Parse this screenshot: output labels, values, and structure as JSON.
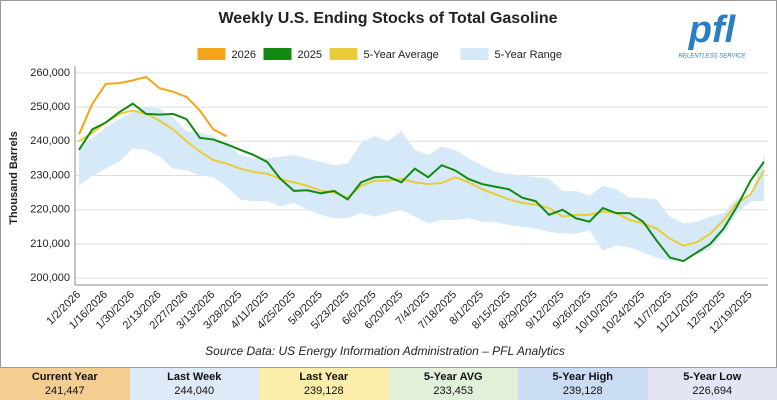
{
  "chart_data": {
    "type": "line",
    "title": "Weekly U.S. Ending Stocks of Total Gasoline",
    "y_label": "Thousand Barrels",
    "source": "Source Data: US Energy Information Administration – PFL Analytics",
    "categories": [
      "1/2/2026",
      null,
      "1/16/2026",
      null,
      "1/30/2026",
      null,
      "2/13/2026",
      null,
      "2/27/2026",
      null,
      "3/13/2026",
      null,
      "3/28/2025",
      null,
      "4/11/2025",
      null,
      "4/25/2025",
      null,
      "5/9/2025",
      null,
      "5/23/2025",
      null,
      "6/6/2025",
      null,
      "6/20/2025",
      null,
      "7/4/2025",
      null,
      "7/18/2025",
      null,
      "8/1/2025",
      null,
      "8/15/2025",
      null,
      "8/29/2025",
      null,
      "9/12/2025",
      null,
      "9/26/2025",
      null,
      "10/10/2025",
      null,
      "10/24/2025",
      null,
      "11/7/2025",
      null,
      "11/21/2025",
      null,
      "12/5/2025",
      null,
      "12/19/2025",
      null
    ],
    "range": {
      "name": "5-Year Range",
      "color": "#d6e9f8",
      "high": [
        238500,
        241000,
        244000,
        246500,
        248500,
        250000,
        249500,
        247000,
        243000,
        242500,
        241500,
        239128,
        236000,
        235000,
        235000,
        235500,
        236000,
        235000,
        234000,
        233000,
        233500,
        239500,
        241500,
        240000,
        243000,
        237500,
        236000,
        238500,
        237500,
        235000,
        233000,
        231000,
        230500,
        230000,
        229500,
        229000,
        225500,
        225500,
        224000,
        227000,
        226000,
        223500,
        223500,
        223000,
        218000,
        216000,
        216500,
        218000,
        219000,
        223500,
        224000,
        236000
      ],
      "low": [
        227000,
        230000,
        232000,
        234000,
        238000,
        237500,
        235500,
        232000,
        231500,
        230000,
        229500,
        226694,
        223000,
        222500,
        222500,
        221000,
        222000,
        220000,
        218500,
        217500,
        217500,
        219000,
        218000,
        219000,
        220000,
        218000,
        216000,
        217000,
        217000,
        217500,
        216500,
        216500,
        215500,
        215000,
        214500,
        213500,
        213000,
        213000,
        214000,
        208000,
        209500,
        209000,
        207500,
        206000,
        205000,
        205500,
        207000,
        208500,
        213000,
        219000,
        222500,
        222500
      ]
    },
    "series": [
      {
        "name": "2026",
        "color": "#f5a31a",
        "values": [
          242000,
          251000,
          256800,
          257000,
          257800,
          258800,
          255500,
          254500,
          253000,
          249000,
          243500,
          241447,
          null,
          null,
          null,
          null,
          null,
          null,
          null,
          null,
          null,
          null,
          null,
          null,
          null,
          null,
          null,
          null,
          null,
          null,
          null,
          null,
          null,
          null,
          null,
          null,
          null,
          null,
          null,
          null,
          null,
          null,
          null,
          null,
          null,
          null,
          null,
          null,
          null,
          null,
          null,
          null
        ]
      },
      {
        "name": "2025",
        "color": "#128a12",
        "values": [
          237500,
          243500,
          245500,
          248500,
          251000,
          248000,
          247800,
          248000,
          246500,
          241000,
          240500,
          239128,
          237500,
          236000,
          234000,
          229000,
          225500,
          225700,
          224800,
          225500,
          223000,
          228000,
          229500,
          229700,
          228000,
          232000,
          229500,
          233000,
          231500,
          229000,
          227500,
          226700,
          226000,
          223500,
          222500,
          218500,
          220000,
          217500,
          216500,
          220500,
          219000,
          219000,
          216500,
          211000,
          206000,
          205000,
          207500,
          210000,
          214500,
          221000,
          228500,
          234000
        ]
      },
      {
        "name": "5-Year Average",
        "color": "#e8cc3a",
        "values": [
          240000,
          242500,
          245500,
          248000,
          249000,
          248000,
          246000,
          243500,
          240000,
          237000,
          234500,
          233453,
          232000,
          231000,
          230500,
          229000,
          228000,
          227000,
          225500,
          225000,
          223500,
          227000,
          228500,
          228500,
          229000,
          228000,
          227500,
          227800,
          229500,
          228000,
          226000,
          224500,
          223000,
          222000,
          221500,
          220500,
          218000,
          218500,
          218500,
          219500,
          219000,
          217000,
          216000,
          214500,
          211500,
          209500,
          210500,
          213000,
          217000,
          222000,
          224500,
          231500
        ]
      }
    ],
    "ylim": [
      198000,
      262000
    ],
    "yticks": [
      {
        "value": 200000,
        "label": "200,000"
      },
      {
        "value": 210000,
        "label": "210,000"
      },
      {
        "value": 220000,
        "label": "220,000"
      },
      {
        "value": 230000,
        "label": "230,000"
      },
      {
        "value": 240000,
        "label": "240,000"
      },
      {
        "value": 250000,
        "label": "250,000"
      },
      {
        "value": 260000,
        "label": "260,000"
      }
    ],
    "grid": true
  },
  "logo": {
    "text": "pfl",
    "tagline": "RELENTLESS SERVICE"
  },
  "summary": [
    {
      "label": "Current Year",
      "value": "241,447",
      "color": "#f3cd92"
    },
    {
      "label": "Last Week",
      "value": "244,040",
      "color": "#deeaf8"
    },
    {
      "label": "Last Year",
      "value": "239,128",
      "color": "#fbeeaa"
    },
    {
      "label": "5-Year AVG",
      "value": "233,453",
      "color": "#e2f0d9"
    },
    {
      "label": "5-Year High",
      "value": "239,128",
      "color": "#cadcf3"
    },
    {
      "label": "5-Year Low",
      "value": "226,694",
      "color": "#e3e5f5"
    }
  ]
}
